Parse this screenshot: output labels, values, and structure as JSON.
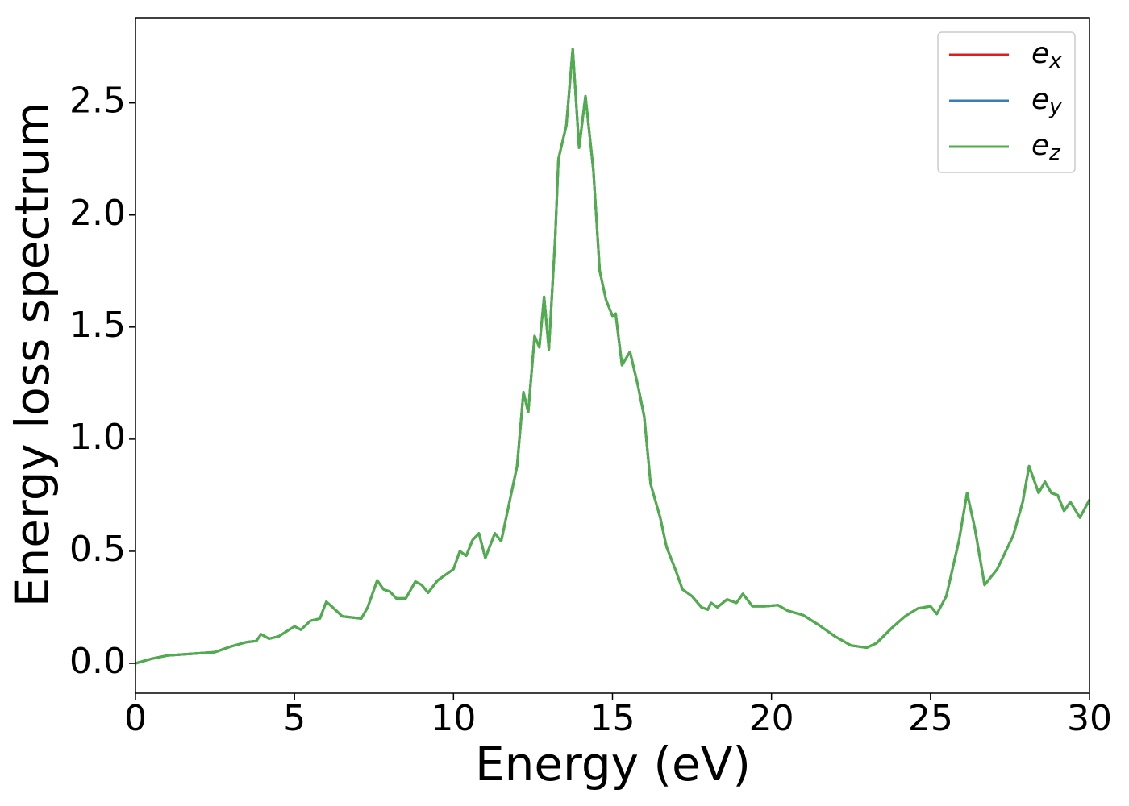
{
  "chart_data": {
    "type": "line",
    "xlabel": "Energy (eV)",
    "ylabel": "Energy loss spectrum",
    "x": [
      0,
      0.5,
      1,
      1.5,
      2,
      2.5,
      3,
      3.5,
      3.8,
      3.95,
      4.2,
      4.5,
      5,
      5.2,
      5.5,
      5.8,
      6,
      6.2,
      6.5,
      6.8,
      7.1,
      7.3,
      7.6,
      7.8,
      8,
      8.2,
      8.5,
      8.8,
      9,
      9.2,
      9.5,
      10,
      10.2,
      10.4,
      10.6,
      10.8,
      11,
      11.3,
      11.5,
      11.7,
      12,
      12.2,
      12.35,
      12.55,
      12.7,
      12.85,
      13,
      13.2,
      13.3,
      13.55,
      13.75,
      13.95,
      14.15,
      14.4,
      14.6,
      14.8,
      15,
      15.1,
      15.3,
      15.55,
      15.8,
      16,
      16.2,
      16.5,
      16.7,
      17,
      17.2,
      17.5,
      17.8,
      18,
      18.1,
      18.3,
      18.6,
      18.9,
      19.1,
      19.4,
      19.8,
      20.2,
      20.5,
      21,
      21.5,
      22,
      22.5,
      23,
      23.3,
      23.8,
      24.2,
      24.6,
      25,
      25.2,
      25.5,
      25.9,
      26.15,
      26.4,
      26.7,
      27.1,
      27.6,
      27.9,
      28.1,
      28.4,
      28.6,
      28.8,
      29,
      29.2,
      29.4,
      29.7,
      30
    ],
    "series": [
      {
        "name": "e_x",
        "color": "#e41a1c",
        "values": [
          0,
          0.02,
          0.035,
          0.04,
          0.045,
          0.05,
          0.075,
          0.095,
          0.1,
          0.13,
          0.11,
          0.12,
          0.165,
          0.15,
          0.19,
          0.2,
          0.275,
          0.25,
          0.21,
          0.205,
          0.2,
          0.25,
          0.37,
          0.33,
          0.32,
          0.29,
          0.29,
          0.365,
          0.35,
          0.315,
          0.37,
          0.42,
          0.5,
          0.48,
          0.55,
          0.58,
          0.47,
          0.58,
          0.545,
          0.68,
          0.88,
          1.21,
          1.12,
          1.46,
          1.41,
          1.635,
          1.4,
          1.9,
          2.25,
          2.4,
          2.74,
          2.3,
          2.53,
          2.2,
          1.75,
          1.62,
          1.55,
          1.56,
          1.33,
          1.39,
          1.24,
          1.1,
          0.8,
          0.65,
          0.52,
          0.41,
          0.33,
          0.3,
          0.25,
          0.24,
          0.27,
          0.25,
          0.285,
          0.27,
          0.31,
          0.255,
          0.255,
          0.26,
          0.235,
          0.215,
          0.17,
          0.12,
          0.08,
          0.07,
          0.09,
          0.16,
          0.21,
          0.245,
          0.255,
          0.22,
          0.3,
          0.55,
          0.76,
          0.6,
          0.35,
          0.42,
          0.57,
          0.72,
          0.88,
          0.76,
          0.81,
          0.76,
          0.75,
          0.68,
          0.72,
          0.65,
          0.73
        ]
      },
      {
        "name": "e_y",
        "color": "#377eb8",
        "values": [
          0,
          0.02,
          0.035,
          0.04,
          0.045,
          0.05,
          0.075,
          0.095,
          0.1,
          0.13,
          0.11,
          0.12,
          0.165,
          0.15,
          0.19,
          0.2,
          0.275,
          0.25,
          0.21,
          0.205,
          0.2,
          0.25,
          0.37,
          0.33,
          0.32,
          0.29,
          0.29,
          0.365,
          0.35,
          0.315,
          0.37,
          0.42,
          0.5,
          0.48,
          0.55,
          0.58,
          0.47,
          0.58,
          0.545,
          0.68,
          0.88,
          1.21,
          1.12,
          1.46,
          1.41,
          1.635,
          1.4,
          1.9,
          2.25,
          2.4,
          2.74,
          2.3,
          2.53,
          2.2,
          1.75,
          1.62,
          1.55,
          1.56,
          1.33,
          1.39,
          1.24,
          1.1,
          0.8,
          0.65,
          0.52,
          0.41,
          0.33,
          0.3,
          0.25,
          0.24,
          0.27,
          0.25,
          0.285,
          0.27,
          0.31,
          0.255,
          0.255,
          0.26,
          0.235,
          0.215,
          0.17,
          0.12,
          0.08,
          0.07,
          0.09,
          0.16,
          0.21,
          0.245,
          0.255,
          0.22,
          0.3,
          0.55,
          0.76,
          0.6,
          0.35,
          0.42,
          0.57,
          0.72,
          0.88,
          0.76,
          0.81,
          0.76,
          0.75,
          0.68,
          0.72,
          0.65,
          0.73
        ]
      },
      {
        "name": "e_z",
        "color": "#4daf4a",
        "values": [
          0,
          0.02,
          0.035,
          0.04,
          0.045,
          0.05,
          0.075,
          0.095,
          0.1,
          0.13,
          0.11,
          0.12,
          0.165,
          0.15,
          0.19,
          0.2,
          0.275,
          0.25,
          0.21,
          0.205,
          0.2,
          0.25,
          0.37,
          0.33,
          0.32,
          0.29,
          0.29,
          0.365,
          0.35,
          0.315,
          0.37,
          0.42,
          0.5,
          0.48,
          0.55,
          0.58,
          0.47,
          0.58,
          0.545,
          0.68,
          0.88,
          1.21,
          1.12,
          1.46,
          1.41,
          1.635,
          1.4,
          1.9,
          2.25,
          2.4,
          2.74,
          2.3,
          2.53,
          2.2,
          1.75,
          1.62,
          1.55,
          1.56,
          1.33,
          1.39,
          1.24,
          1.1,
          0.8,
          0.65,
          0.52,
          0.41,
          0.33,
          0.3,
          0.25,
          0.24,
          0.27,
          0.25,
          0.285,
          0.27,
          0.31,
          0.255,
          0.255,
          0.26,
          0.235,
          0.215,
          0.17,
          0.12,
          0.08,
          0.07,
          0.09,
          0.16,
          0.21,
          0.245,
          0.255,
          0.22,
          0.3,
          0.55,
          0.76,
          0.6,
          0.35,
          0.42,
          0.57,
          0.72,
          0.88,
          0.76,
          0.81,
          0.76,
          0.75,
          0.68,
          0.72,
          0.65,
          0.73
        ]
      }
    ],
    "xlim": [
      0,
      30
    ],
    "xticks": [
      0,
      5,
      10,
      15,
      20,
      25,
      30
    ],
    "ylim": [
      -0.133,
      2.88
    ],
    "yticks": [
      {
        "value": 0,
        "label": "0.0"
      },
      0.5,
      {
        "value": 1,
        "label": "1.0"
      },
      1.5,
      {
        "value": 2,
        "label": "2.0"
      },
      2.5
    ],
    "grid": false,
    "legend": "upper right"
  }
}
